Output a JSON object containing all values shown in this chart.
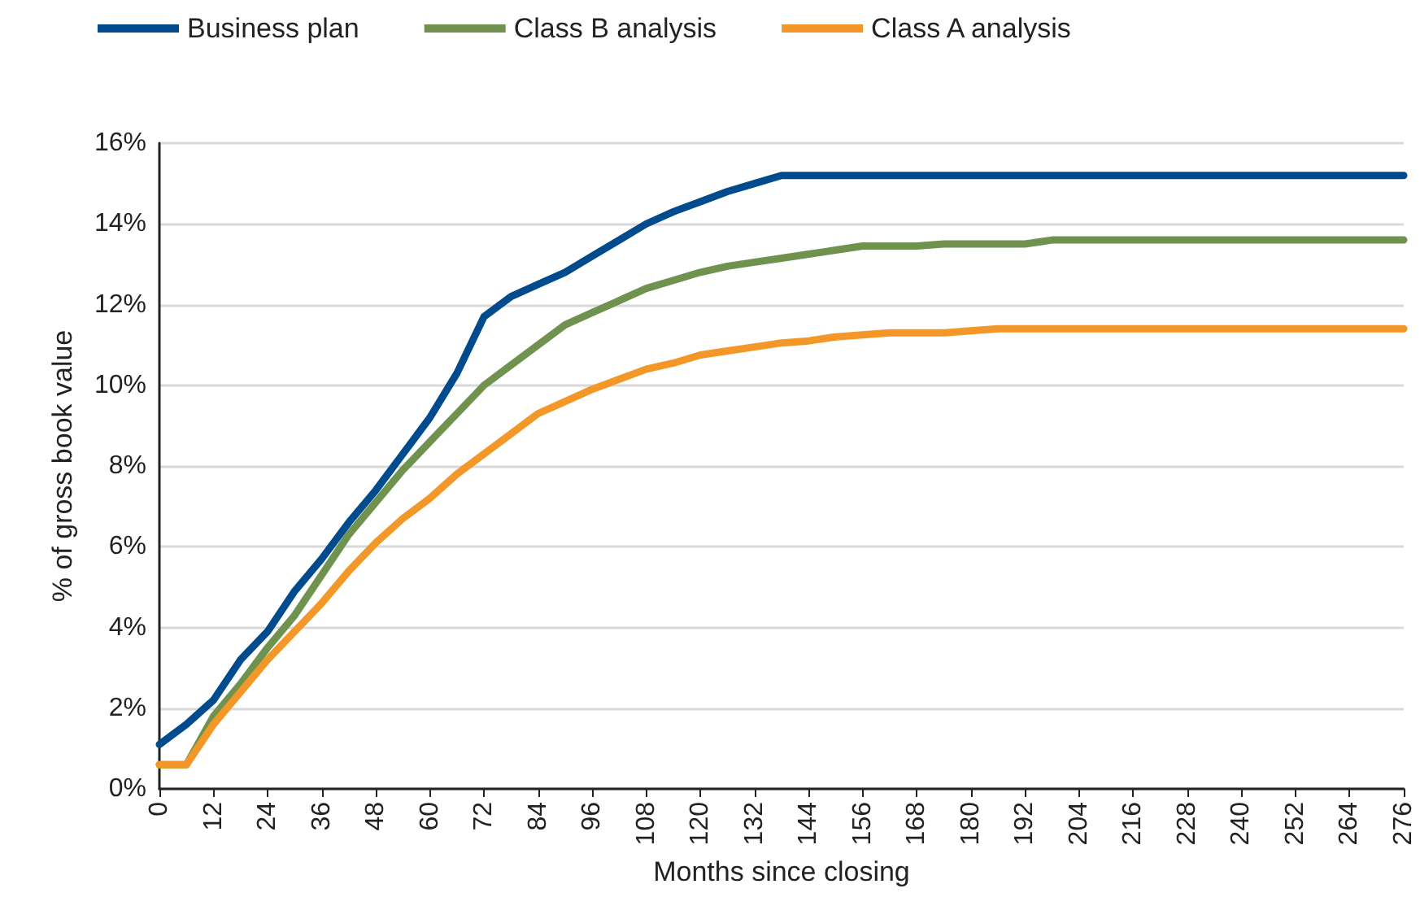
{
  "chart_data": {
    "type": "line",
    "xlabel": "Months since closing",
    "ylabel": "% of gross book value",
    "x": [
      0,
      6,
      12,
      18,
      24,
      30,
      36,
      42,
      48,
      54,
      60,
      66,
      72,
      78,
      84,
      90,
      96,
      102,
      108,
      114,
      120,
      126,
      132,
      138,
      144,
      150,
      156,
      162,
      168,
      174,
      180,
      186,
      192,
      198,
      204,
      210,
      216,
      222,
      228,
      234,
      240,
      246,
      252,
      258,
      264,
      270,
      276
    ],
    "series": [
      {
        "name": "Business plan",
        "color": "#004b8d",
        "values": [
          1.1,
          1.6,
          2.2,
          3.2,
          3.9,
          4.9,
          5.7,
          6.6,
          7.4,
          8.3,
          9.2,
          10.3,
          11.7,
          12.2,
          12.5,
          12.8,
          13.2,
          13.6,
          14.0,
          14.3,
          14.55,
          14.8,
          15.0,
          15.2,
          15.2,
          15.2,
          15.2,
          15.2,
          15.2,
          15.2,
          15.2,
          15.2,
          15.2,
          15.2,
          15.2,
          15.2,
          15.2,
          15.2,
          15.2,
          15.2,
          15.2,
          15.2,
          15.2,
          15.2,
          15.2,
          15.2,
          15.2
        ]
      },
      {
        "name": "Class B analysis",
        "color": "#6f934f",
        "values": [
          0.6,
          0.6,
          1.8,
          2.6,
          3.5,
          4.3,
          5.3,
          6.3,
          7.1,
          7.9,
          8.6,
          9.3,
          10.0,
          10.5,
          11.0,
          11.5,
          11.8,
          12.1,
          12.4,
          12.6,
          12.8,
          12.95,
          13.05,
          13.15,
          13.25,
          13.35,
          13.45,
          13.45,
          13.45,
          13.5,
          13.5,
          13.5,
          13.5,
          13.6,
          13.6,
          13.6,
          13.6,
          13.6,
          13.6,
          13.6,
          13.6,
          13.6,
          13.6,
          13.6,
          13.6,
          13.6,
          13.6
        ]
      },
      {
        "name": "Class A analysis",
        "color": "#f39729",
        "values": [
          0.6,
          0.6,
          1.6,
          2.4,
          3.2,
          3.9,
          4.6,
          5.4,
          6.1,
          6.7,
          7.2,
          7.8,
          8.3,
          8.8,
          9.3,
          9.6,
          9.9,
          10.15,
          10.4,
          10.55,
          10.75,
          10.85,
          10.95,
          11.05,
          11.1,
          11.2,
          11.25,
          11.3,
          11.3,
          11.3,
          11.35,
          11.4,
          11.4,
          11.4,
          11.4,
          11.4,
          11.4,
          11.4,
          11.4,
          11.4,
          11.4,
          11.4,
          11.4,
          11.4,
          11.4,
          11.4,
          11.4
        ]
      }
    ],
    "xlim": [
      0,
      276
    ],
    "xticks": [
      0,
      12,
      24,
      36,
      48,
      60,
      72,
      84,
      96,
      108,
      120,
      132,
      144,
      156,
      168,
      180,
      192,
      204,
      216,
      228,
      240,
      252,
      264,
      276
    ],
    "ylim": [
      0,
      16
    ],
    "yticks": [
      {
        "value": 0,
        "label": "0%"
      },
      {
        "value": 2,
        "label": "2%"
      },
      {
        "value": 4,
        "label": "4%"
      },
      {
        "value": 6,
        "label": "6%"
      },
      {
        "value": 8,
        "label": "8%"
      },
      {
        "value": 10,
        "label": "10%"
      },
      {
        "value": 12,
        "label": "12%"
      },
      {
        "value": 14,
        "label": "14%"
      },
      {
        "value": 16,
        "label": "16%"
      }
    ],
    "grid": "y",
    "legend": "top left",
    "marker": "none",
    "line_style": "solid"
  }
}
